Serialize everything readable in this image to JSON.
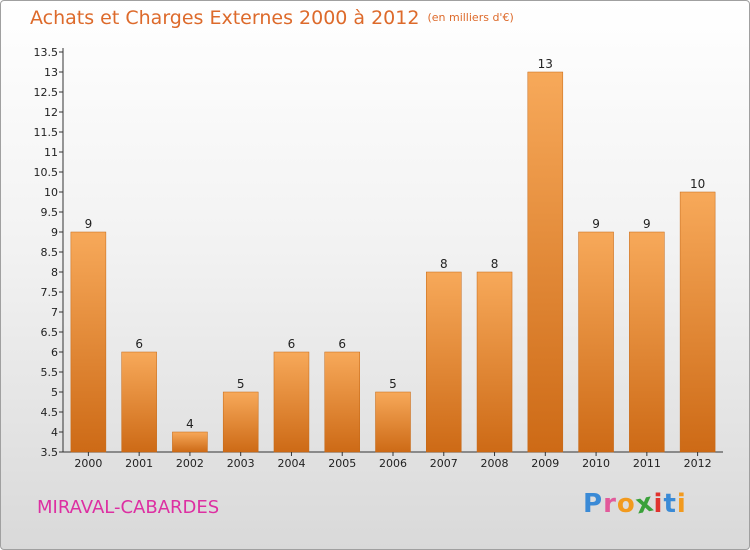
{
  "header": {
    "title": "Achats et Charges Externes 2000 à 2012",
    "unit": "(en milliers d'€)"
  },
  "footer": {
    "commune": "MIRAVAL-CABARDES",
    "brand": [
      "P",
      "r",
      "o",
      "x",
      "i",
      "t",
      "i"
    ],
    "brand_colors": [
      "#3a8ad6",
      "#e25a9b",
      "#f29a1e",
      "#3aa13a",
      "#e0332f",
      "#3a8ad6",
      "#f29a1e"
    ]
  },
  "colors": {
    "bar_top": "#f7a95a",
    "bar_bottom": "#cd6a16",
    "title": "#dd6a2b",
    "commune": "#dd2fa2"
  },
  "chart_data": {
    "type": "bar",
    "categories": [
      "2000",
      "2001",
      "2002",
      "2003",
      "2004",
      "2005",
      "2006",
      "2007",
      "2008",
      "2009",
      "2010",
      "2011",
      "2012"
    ],
    "values": [
      9,
      6,
      4,
      5,
      6,
      6,
      5,
      8,
      8,
      13,
      9,
      9,
      10
    ],
    "data_labels": [
      "9",
      "6",
      "4",
      "5",
      "6",
      "6",
      "5",
      "8",
      "8",
      "13",
      "9",
      "9",
      "10"
    ],
    "title": "Achats et Charges Externes 2000 à 2012",
    "xlabel": "",
    "ylabel": "",
    "ylim": [
      3.5,
      13.5
    ],
    "yticks": [
      "3.5",
      "4",
      "4.5",
      "5",
      "5.5",
      "6",
      "6.5",
      "7",
      "7.5",
      "8",
      "8.5",
      "9",
      "9.5",
      "10",
      "10.5",
      "11",
      "11.5",
      "12",
      "12.5",
      "13",
      "13.5"
    ],
    "grid": false,
    "legend": "none"
  }
}
